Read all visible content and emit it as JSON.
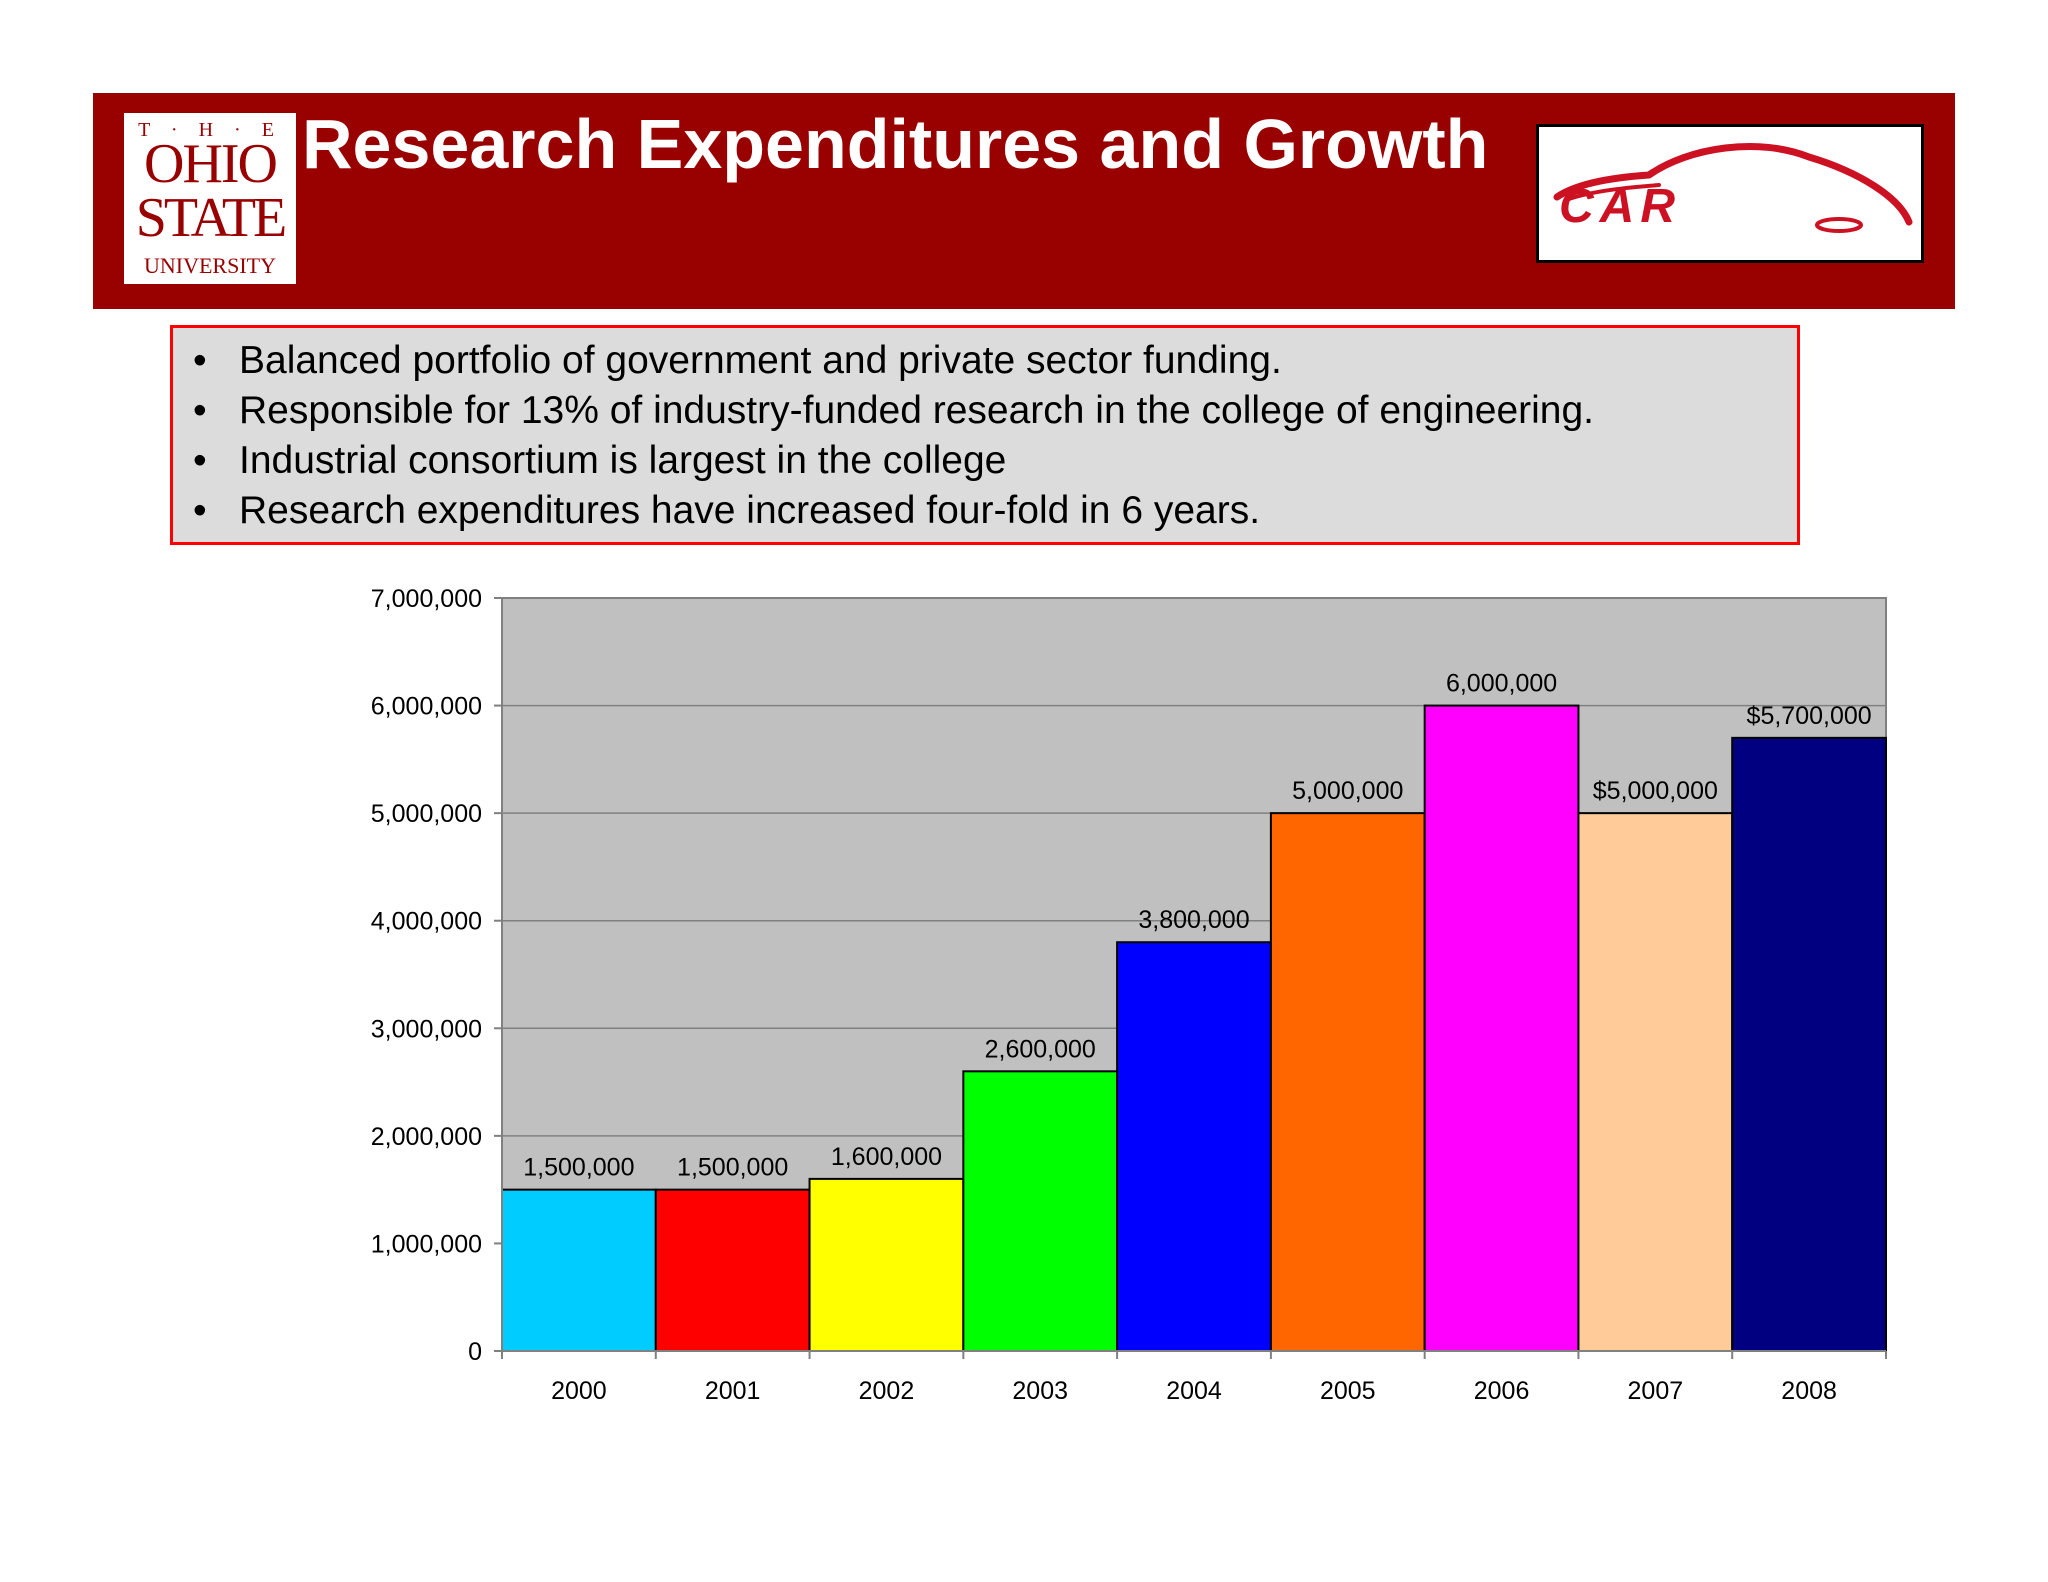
{
  "header": {
    "title": "Research Expenditures and Growth",
    "university_logo": {
      "line_the": "T · H · E",
      "line1": "OHIO",
      "line2": "STATE",
      "line3": "UNIVERSITY"
    },
    "car_logo": {
      "icon": "car-silhouette-icon",
      "text": "CAR"
    }
  },
  "bullets": [
    "Balanced portfolio of government and private sector funding.",
    "Responsible for 13% of industry-funded research in the college of engineering.",
    "Industrial consortium is largest in the college",
    "Research expenditures have increased four-fold in 6 years."
  ],
  "colors": {
    "banner": "#990000",
    "plot_background": "#c0c0c0",
    "bullet_border": "#ff0000"
  },
  "chart_data": {
    "type": "bar",
    "title": "",
    "xlabel": "",
    "ylabel": "",
    "ylim": [
      0,
      7000000
    ],
    "yticks": [
      0,
      1000000,
      2000000,
      3000000,
      4000000,
      5000000,
      6000000,
      7000000
    ],
    "ytick_labels": [
      "0",
      "1,000,000",
      "2,000,000",
      "3,000,000",
      "4,000,000",
      "5,000,000",
      "6,000,000",
      "7,000,000"
    ],
    "grid": true,
    "legend": "none",
    "categories": [
      "2000",
      "2001",
      "2002",
      "2003",
      "2004",
      "2005",
      "2006",
      "2007",
      "2008"
    ],
    "values": [
      1500000,
      1500000,
      1600000,
      2600000,
      3800000,
      5000000,
      6000000,
      5000000,
      5700000
    ],
    "data_labels": [
      "1,500,000",
      "1,500,000",
      "1,600,000",
      "2,600,000",
      "3,800,000",
      "5,000,000",
      "6,000,000",
      "$5,000,000",
      "$5,700,000"
    ],
    "bar_colors": [
      "#00ccff",
      "#ff0000",
      "#ffff00",
      "#00ff00",
      "#0000ff",
      "#ff6600",
      "#ff00ff",
      "#ffcc99",
      "#000080"
    ]
  }
}
